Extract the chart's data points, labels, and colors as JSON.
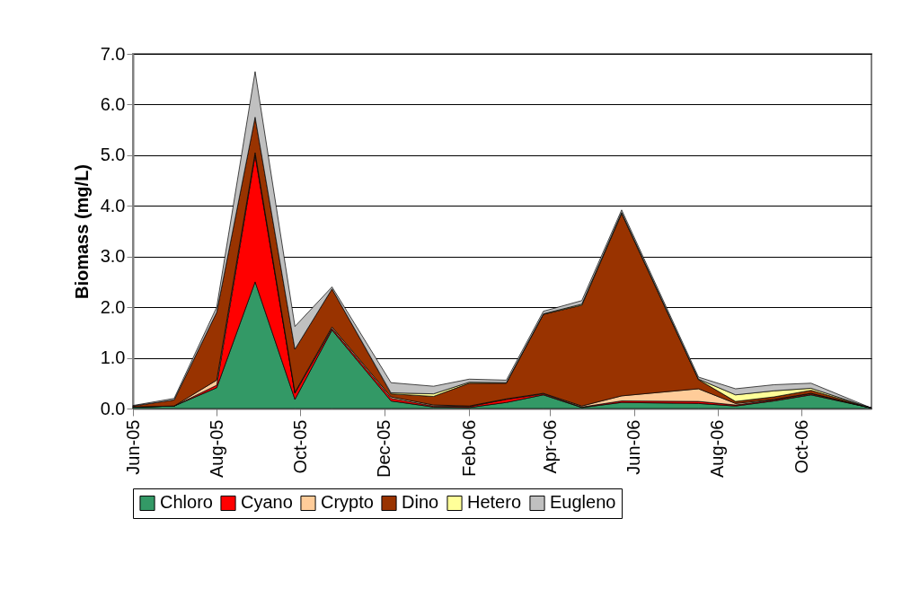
{
  "chart_data": {
    "type": "area",
    "stacked": true,
    "ylabel": "Biomass (mg/L)",
    "x": [
      "2005-06-01",
      "2005-07-01",
      "2005-08-01",
      "2005-08-29",
      "2005-09-27",
      "2005-10-24",
      "2005-12-06",
      "2006-01-06",
      "2006-02-01",
      "2006-02-28",
      "2006-03-27",
      "2006-04-24",
      "2006-05-23",
      "2006-07-18",
      "2006-08-14",
      "2006-09-11",
      "2006-10-08",
      "2006-11-21"
    ],
    "series": [
      {
        "name": "Chloro",
        "color": "#339966",
        "values": [
          0.03,
          0.05,
          0.41,
          2.5,
          0.18,
          1.55,
          0.15,
          0.03,
          0.02,
          0.12,
          0.27,
          0.02,
          0.12,
          0.1,
          0.05,
          0.15,
          0.27,
          0.01
        ]
      },
      {
        "name": "Cyano",
        "color": "#ff0000",
        "values": [
          0,
          0,
          0.05,
          2.5,
          0.12,
          0.03,
          0.05,
          0.02,
          0.02,
          0.06,
          0.02,
          0.01,
          0.03,
          0.04,
          0.02,
          0.02,
          0.02,
          0
        ]
      },
      {
        "name": "Crypto",
        "color": "#ffcc99",
        "values": [
          0,
          0,
          0.1,
          0.05,
          0.02,
          0.03,
          0.03,
          0.02,
          0.01,
          0.01,
          0.01,
          0.02,
          0.1,
          0.25,
          0.03,
          0.01,
          0.01,
          0
        ]
      },
      {
        "name": "Dino",
        "color": "#993300",
        "values": [
          0.02,
          0.12,
          1.34,
          0.7,
          0.85,
          0.75,
          0.06,
          0.17,
          0.45,
          0.31,
          1.56,
          1.99,
          3.6,
          0.18,
          0.04,
          0.05,
          0.06,
          0
        ]
      },
      {
        "name": "Hetero",
        "color": "#ffff99",
        "values": [
          null,
          null,
          null,
          null,
          null,
          null,
          0.02,
          0.05,
          0.02,
          0.01,
          0.01,
          0.02,
          0.02,
          0.01,
          0.13,
          0.12,
          0.04,
          0
        ]
      },
      {
        "name": "Eugleno",
        "color": "#c0c0c0",
        "values": [
          0.01,
          0.03,
          0.1,
          0.9,
          0.45,
          0.04,
          0.2,
          0.15,
          0.06,
          0.05,
          0.05,
          0.07,
          0.05,
          0.04,
          0.12,
          0.12,
          0.1,
          0
        ]
      }
    ],
    "xlim": [
      "2005-06-01",
      "2006-11-21"
    ],
    "xticks": [
      {
        "value": "2005-06-01",
        "label": "Jun-05"
      },
      {
        "value": "2005-08-01",
        "label": "Aug-05"
      },
      {
        "value": "2005-10-01",
        "label": "Oct-05"
      },
      {
        "value": "2005-12-01",
        "label": "Dec-05"
      },
      {
        "value": "2006-02-01",
        "label": "Feb-06"
      },
      {
        "value": "2006-04-01",
        "label": "Apr-06"
      },
      {
        "value": "2006-06-01",
        "label": "Jun-06"
      },
      {
        "value": "2006-08-01",
        "label": "Aug-06"
      },
      {
        "value": "2006-10-01",
        "label": "Oct-06"
      }
    ],
    "ylim": [
      0,
      7
    ],
    "yticks": [
      {
        "value": 0,
        "label": "0.0"
      },
      {
        "value": 1,
        "label": "1.0"
      },
      {
        "value": 2,
        "label": "2.0"
      },
      {
        "value": 3,
        "label": "3.0"
      },
      {
        "value": 4,
        "label": "4.0"
      },
      {
        "value": 5,
        "label": "5.0"
      },
      {
        "value": 6,
        "label": "6.0"
      },
      {
        "value": 7,
        "label": "7.0"
      }
    ],
    "grid": "y",
    "legend": "bottom"
  }
}
